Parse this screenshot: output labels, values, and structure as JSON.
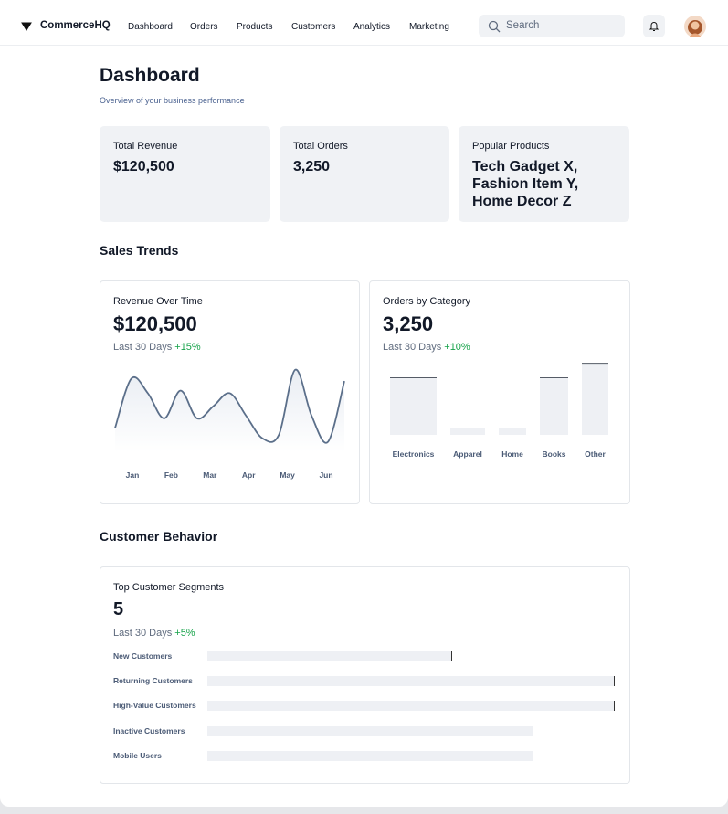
{
  "nav": {
    "brand": "CommerceHQ",
    "links": [
      "Dashboard",
      "Orders",
      "Products",
      "Customers",
      "Analytics",
      "Marketing"
    ],
    "search_placeholder": "Search"
  },
  "header": {
    "title": "Dashboard",
    "subtitle": "Overview of your business performance"
  },
  "stats": [
    {
      "label": "Total Revenue",
      "value": "$120,500"
    },
    {
      "label": "Total Orders",
      "value": "3,250"
    },
    {
      "label": "Popular Products",
      "value": "Tech Gadget X, Fashion Item Y, Home Decor Z"
    }
  ],
  "sales_trends": {
    "title": "Sales Trends",
    "revenue": {
      "title": "Revenue Over Time",
      "value": "$120,500",
      "period": "Last 30 Days",
      "change": "+15%",
      "chart": {
        "type": "line",
        "x_labels": [
          "Jan",
          "Feb",
          "Mar",
          "Apr",
          "May",
          "Jun"
        ],
        "values": [
          28,
          85,
          68,
          39,
          71,
          39,
          53,
          68,
          42,
          16,
          20,
          95,
          42,
          12,
          82
        ],
        "ylim": [
          0,
          100
        ]
      }
    },
    "orders": {
      "title": "Orders by Category",
      "value": "3,250",
      "period": "Last 30 Days",
      "change": "+10%",
      "chart": {
        "type": "bar",
        "categories": [
          "Electronics",
          "Apparel",
          "Home",
          "Books",
          "Other"
        ],
        "values": [
          67,
          8,
          8,
          67,
          84
        ],
        "ylim": [
          0,
          90
        ]
      }
    }
  },
  "customer_behavior": {
    "title": "Customer Behavior",
    "segments": {
      "title": "Top Customer Segments",
      "value": "5",
      "period": "Last 30 Days",
      "change": "+5%",
      "chart": {
        "type": "bar",
        "categories": [
          "New Customers",
          "Returning Customers",
          "High-Value Customers",
          "Inactive Customers",
          "Mobile Users"
        ],
        "values": [
          60,
          100,
          100,
          80,
          80
        ],
        "xlim": [
          0,
          100
        ]
      }
    }
  }
}
